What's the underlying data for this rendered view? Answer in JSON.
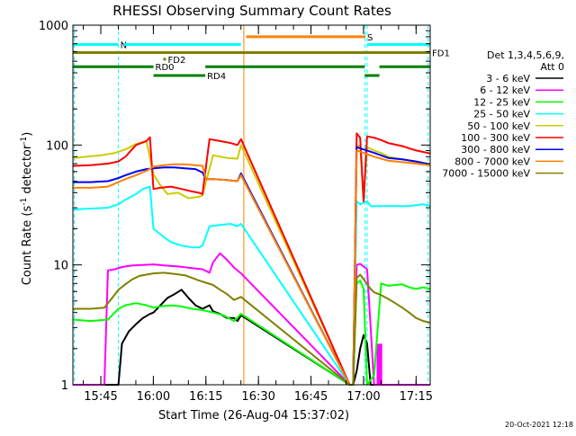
{
  "chart_data": {
    "type": "line",
    "title": "RHESSI Observing Summary Count Rates",
    "xlabel": "Start Time (26-Aug-04 15:37:02)",
    "ylabel": {
      "main": "Count Rate (s",
      "sup1": "-1",
      "mid": " detector",
      "sup2": "-1",
      "end": ")"
    },
    "x_scale": "time (minutes after 15:37:02)",
    "y_scale": "log",
    "xlim": [
      0,
      102
    ],
    "ylim": [
      1,
      1000
    ],
    "x_ticks": [
      {
        "x": 7.97,
        "label": "15:45"
      },
      {
        "x": 22.97,
        "label": "16:00"
      },
      {
        "x": 37.97,
        "label": "16:15"
      },
      {
        "x": 52.97,
        "label": "16:30"
      },
      {
        "x": 67.97,
        "label": "16:45"
      },
      {
        "x": 82.97,
        "label": "17:00"
      },
      {
        "x": 97.97,
        "label": "17:15"
      }
    ],
    "y_ticks": [
      {
        "y": 1,
        "label": "1"
      },
      {
        "y": 10,
        "label": "10"
      },
      {
        "y": 100,
        "label": "100"
      },
      {
        "y": 1000,
        "label": "1000"
      }
    ],
    "legend_header": [
      "Det 1,3,4,5,6,9,",
      "Att 0"
    ],
    "legend_placement": "right outside",
    "series": [
      {
        "name": "3 - 6 keV",
        "color": "#000000",
        "x": [
          0,
          5,
          10,
          13,
          14,
          16,
          18,
          20,
          22,
          23,
          25,
          27,
          29,
          31,
          33,
          35,
          37,
          39,
          40,
          42,
          44,
          46,
          47,
          48,
          79,
          80,
          81,
          82,
          83,
          84,
          85,
          86,
          102
        ],
        "y": [
          1,
          1,
          1,
          1,
          2.2,
          2.8,
          3.2,
          3.6,
          3.9,
          4.0,
          4.6,
          5.3,
          5.7,
          6.2,
          5.3,
          4.6,
          4.3,
          4.6,
          4.1,
          3.9,
          3.6,
          3.6,
          3.4,
          3.8,
          1,
          1,
          1.3,
          2.0,
          2.6,
          2.2,
          1,
          1,
          1
        ]
      },
      {
        "name": "6 - 12 keV",
        "color": "#ff00ff",
        "x": [
          0,
          9,
          10,
          12,
          14,
          17,
          20,
          23,
          26,
          30,
          34,
          37,
          39,
          40,
          42,
          44,
          46,
          48,
          79,
          80,
          81,
          82,
          84,
          86,
          88,
          90,
          92,
          94,
          96,
          98,
          100,
          102
        ],
        "y": [
          1,
          1,
          9,
          9.2,
          9.6,
          9.9,
          10,
          10.1,
          9.9,
          9.7,
          9.4,
          9.2,
          8.6,
          10.5,
          12.5,
          11,
          9.5,
          8.5,
          1,
          1,
          10,
          10.2,
          9.2,
          1,
          1,
          1,
          1,
          1,
          1,
          1,
          1,
          1
        ]
      },
      {
        "name": "12 - 25 keV",
        "color": "#00ff00",
        "x": [
          0,
          5,
          10,
          13,
          15,
          18,
          21,
          23,
          25,
          28,
          31,
          34,
          37,
          40,
          43,
          46,
          48,
          79,
          80,
          81,
          82,
          83,
          84,
          86,
          88,
          90,
          92,
          94,
          96,
          98,
          100,
          102
        ],
        "y": [
          3.5,
          3.4,
          3.5,
          4.3,
          4.6,
          4.8,
          4.6,
          4.4,
          4.5,
          4.6,
          4.5,
          4.3,
          4.2,
          4.0,
          3.8,
          3.4,
          3.9,
          1,
          1,
          7.0,
          7.4,
          6.3,
          1,
          1.2,
          7,
          6.7,
          6.8,
          6.9,
          6.5,
          6.3,
          6.5,
          6.3
        ]
      },
      {
        "name": "25 - 50 keV",
        "color": "#00ffff",
        "x": [
          0,
          5,
          10,
          13,
          15,
          18,
          20,
          22,
          23,
          24,
          26,
          28,
          31,
          34,
          36,
          37,
          39,
          42,
          45,
          47,
          48,
          79,
          80,
          81,
          82,
          83,
          84,
          85,
          87,
          90,
          93,
          96,
          100,
          102
        ],
        "y": [
          29,
          29.5,
          30,
          32,
          35,
          39,
          43,
          45,
          20,
          19,
          17,
          15.5,
          14.5,
          14,
          14,
          14.5,
          21,
          21.5,
          22,
          21,
          22,
          1,
          1,
          34,
          32,
          33,
          34,
          31,
          31,
          31,
          31,
          31,
          32,
          31
        ]
      },
      {
        "name": "50 - 100 keV",
        "color": "#cccc00",
        "x": [
          0,
          4,
          8,
          12,
          15,
          18,
          21,
          23,
          25,
          27,
          30,
          33,
          36,
          37,
          40,
          44,
          47,
          48,
          79,
          80,
          81,
          82,
          83,
          84,
          86,
          88,
          90,
          94,
          98,
          102
        ],
        "y": [
          78,
          80,
          82,
          86,
          92,
          102,
          108,
          57,
          46,
          39,
          40,
          36,
          37,
          38,
          82,
          78,
          77,
          100,
          1,
          1,
          98,
          99,
          34,
          96,
          90,
          86,
          80,
          76,
          72,
          68
        ]
      },
      {
        "name": "100 - 300 keV",
        "color": "#ff0000",
        "x": [
          0,
          5,
          10,
          13,
          15,
          18,
          21,
          22,
          23,
          25,
          28,
          31,
          34,
          36,
          37,
          39,
          42,
          45,
          47,
          48,
          79,
          80,
          81,
          82,
          83,
          84,
          86,
          88,
          90,
          94,
          98,
          102
        ],
        "y": [
          67,
          68,
          70,
          73,
          80,
          100,
          108,
          116,
          43,
          44,
          45,
          43,
          41,
          40,
          39,
          112,
          108,
          104,
          100,
          112,
          1,
          1,
          125,
          115,
          34,
          118,
          115,
          110,
          104,
          98,
          90,
          85
        ]
      },
      {
        "name": "300 - 800 keV",
        "color": "#0000ff",
        "x": [
          0,
          5,
          10,
          13,
          15,
          18,
          21,
          23,
          26,
          29,
          32,
          35,
          37,
          38,
          40,
          44,
          47,
          48,
          79,
          80,
          81,
          82,
          83,
          84,
          86,
          88,
          90,
          94,
          98,
          102
        ],
        "y": [
          49,
          49,
          50,
          53,
          56,
          60,
          63,
          64,
          65,
          65,
          64,
          63,
          59,
          52,
          52,
          51,
          50,
          58,
          1,
          1,
          96,
          94,
          92,
          90,
          86,
          82,
          78,
          76,
          73,
          69
        ]
      },
      {
        "name": "800 - 7000 keV",
        "color": "#ff8000",
        "x": [
          0,
          5,
          10,
          13,
          15,
          18,
          21,
          23,
          26,
          29,
          32,
          35,
          37,
          38,
          40,
          44,
          47,
          48,
          79,
          80,
          81,
          82,
          83,
          84,
          86,
          88,
          90,
          94,
          98,
          102
        ],
        "y": [
          44,
          44,
          45,
          49,
          52,
          56,
          61,
          66,
          68,
          69,
          69,
          68,
          67,
          52,
          52,
          51,
          50,
          56,
          1,
          1,
          90,
          88,
          86,
          84,
          80,
          77,
          74,
          72,
          70,
          68
        ]
      },
      {
        "name": "7000 - 15000 keV",
        "color": "#808000",
        "x": [
          0,
          5,
          9,
          11,
          13,
          15,
          17,
          19,
          21,
          23,
          26,
          29,
          32,
          34,
          36,
          38,
          40,
          42,
          44,
          46,
          48,
          79,
          80,
          81,
          82,
          83,
          84,
          85,
          86,
          88,
          90,
          92,
          94,
          96,
          98,
          100,
          102
        ],
        "y": [
          4.3,
          4.3,
          4.4,
          5.2,
          6.2,
          6.9,
          7.6,
          8.1,
          8.3,
          8.5,
          8.6,
          8.4,
          8.2,
          7.8,
          7.4,
          7.1,
          6.8,
          6.2,
          5.7,
          5.1,
          5.4,
          1,
          1,
          7.8,
          8.3,
          7.6,
          6.9,
          6.3,
          5.9,
          5.6,
          5.2,
          4.8,
          4.4,
          4.0,
          3.6,
          3.4,
          3.3
        ]
      }
    ],
    "annotations": [
      {
        "label": "N",
        "color": "#00ffff",
        "x_start": 0,
        "x_end": 13,
        "y": 690
      },
      {
        "label": "",
        "color": "#00ffff",
        "x_start": 14.5,
        "x_end": 48,
        "y": 690
      },
      {
        "label": "",
        "color": "#00ffff",
        "x_start": 84,
        "x_end": 102,
        "y": 690
      },
      {
        "label": "S",
        "color": "#ff8000",
        "x_start": 49.5,
        "x_end": 83.5,
        "y": 800
      },
      {
        "label": "FD1",
        "color": "#808000",
        "x_start": 0,
        "x_end": 102,
        "y": 590
      },
      {
        "label": "FD2",
        "color": "#808000",
        "x_start": 25.8,
        "x_end": 26.6,
        "y": 520
      },
      {
        "label": "RD0",
        "color": "#008000",
        "x_start": 0,
        "x_end": 23,
        "y": 450
      },
      {
        "label": "",
        "color": "#008000",
        "x_start": 37.8,
        "x_end": 83.3,
        "y": 450
      },
      {
        "label": "",
        "color": "#008000",
        "x_start": 87.5,
        "x_end": 102,
        "y": 450
      },
      {
        "label": "RD4",
        "color": "#008000",
        "x_start": 23,
        "x_end": 37.8,
        "y": 380
      },
      {
        "label": "",
        "color": "#008000",
        "x_start": 83.3,
        "x_end": 87.5,
        "y": 380
      }
    ],
    "vertical_markers": [
      {
        "x": 0.4,
        "color": "#00ffff",
        "style": "dashed"
      },
      {
        "x": 13,
        "color": "#00ffff",
        "style": "dashed"
      },
      {
        "x": 48.8,
        "color": "#ff8000",
        "style": "solid"
      },
      {
        "x": 83.4,
        "color": "#00ffff",
        "style": "dashed"
      },
      {
        "x": 84,
        "color": "#00ffff",
        "style": "dashed"
      },
      {
        "x": 101.4,
        "color": "#00ffff",
        "style": "dashed"
      }
    ],
    "gap_spike": {
      "x_start": 86.7,
      "x_end": 88.3,
      "y": 2.2,
      "color": "#ff00ff"
    }
  },
  "timestamp": "20-Oct-2021 12:18"
}
